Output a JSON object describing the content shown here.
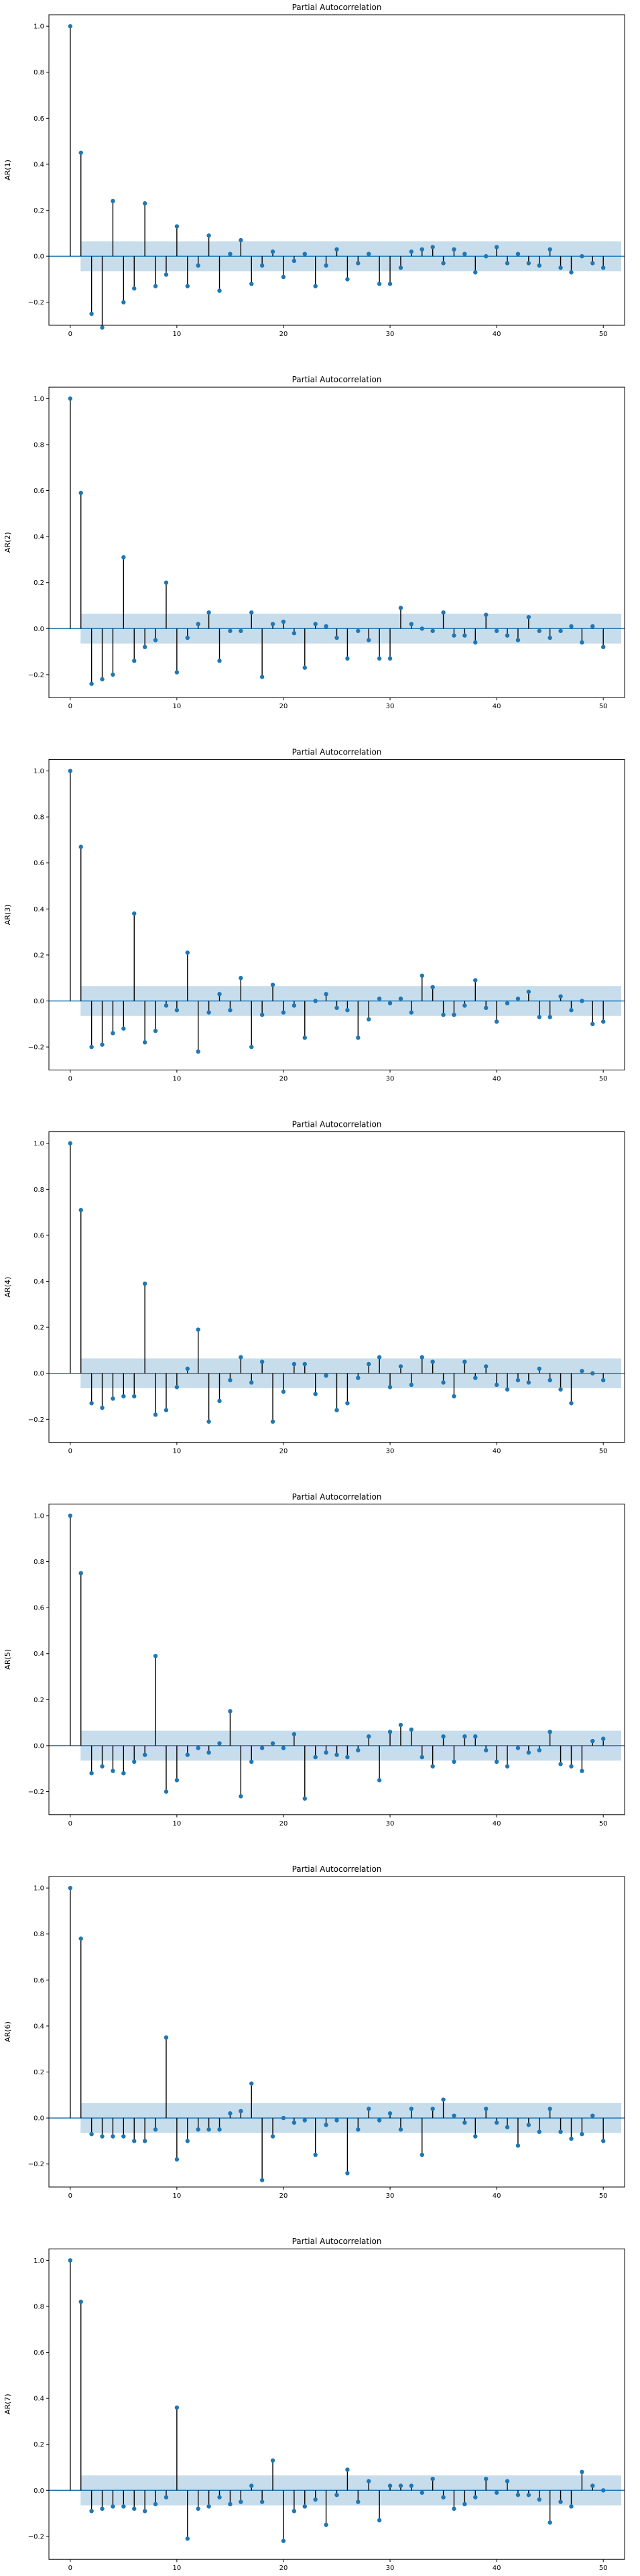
{
  "figure": {
    "colors": {
      "marker": "#1f77b4",
      "stem": "#000000",
      "band": "#1f77b4"
    }
  },
  "chart_data": [
    {
      "type": "stem",
      "title": "Partial Autocorrelation",
      "ylabel": "AR(1)",
      "xlim": [
        -2,
        52
      ],
      "ylim": [
        -0.3,
        1.05
      ],
      "xticks": [
        0,
        10,
        20,
        30,
        40,
        50
      ],
      "yticks": [
        -0.2,
        0.0,
        0.2,
        0.4,
        0.6,
        0.8,
        1.0
      ],
      "confidence_band": 0.065,
      "x": [
        0,
        1,
        2,
        3,
        4,
        5,
        6,
        7,
        8,
        9,
        10,
        11,
        12,
        13,
        14,
        15,
        16,
        17,
        18,
        19,
        20,
        21,
        22,
        23,
        24,
        25,
        26,
        27,
        28,
        29,
        30,
        31,
        32,
        33,
        34,
        35,
        36,
        37,
        38,
        39,
        40,
        41,
        42,
        43,
        44,
        45,
        46,
        47,
        48,
        49,
        50
      ],
      "values": [
        1.0,
        0.45,
        -0.25,
        -0.31,
        0.24,
        -0.2,
        -0.14,
        0.23,
        -0.13,
        -0.08,
        0.13,
        -0.13,
        -0.04,
        0.09,
        -0.15,
        0.01,
        0.07,
        -0.12,
        -0.04,
        0.02,
        -0.09,
        -0.02,
        0.01,
        -0.13,
        -0.04,
        0.03,
        -0.1,
        -0.03,
        0.01,
        -0.12,
        -0.12,
        -0.05,
        0.02,
        0.03,
        0.04,
        -0.03,
        0.03,
        0.01,
        -0.07,
        0.0,
        0.04,
        -0.03,
        0.01,
        -0.03,
        -0.04,
        0.03,
        -0.05,
        -0.07,
        0.0,
        -0.03,
        -0.05
      ]
    },
    {
      "type": "stem",
      "title": "Partial Autocorrelation",
      "ylabel": "AR(2)",
      "xlim": [
        -2,
        52
      ],
      "ylim": [
        -0.3,
        1.05
      ],
      "xticks": [
        0,
        10,
        20,
        30,
        40,
        50
      ],
      "yticks": [
        -0.2,
        0.0,
        0.2,
        0.4,
        0.6,
        0.8,
        1.0
      ],
      "confidence_band": 0.065,
      "x": [
        0,
        1,
        2,
        3,
        4,
        5,
        6,
        7,
        8,
        9,
        10,
        11,
        12,
        13,
        14,
        15,
        16,
        17,
        18,
        19,
        20,
        21,
        22,
        23,
        24,
        25,
        26,
        27,
        28,
        29,
        30,
        31,
        32,
        33,
        34,
        35,
        36,
        37,
        38,
        39,
        40,
        41,
        42,
        43,
        44,
        45,
        46,
        47,
        48,
        49,
        50
      ],
      "values": [
        1.0,
        0.59,
        -0.24,
        -0.22,
        -0.2,
        0.31,
        -0.14,
        -0.08,
        -0.05,
        0.2,
        -0.19,
        -0.04,
        0.02,
        0.07,
        -0.14,
        -0.01,
        -0.01,
        0.07,
        -0.21,
        0.02,
        0.03,
        -0.02,
        -0.17,
        0.02,
        0.01,
        -0.04,
        -0.13,
        -0.01,
        -0.05,
        -0.13,
        -0.13,
        0.09,
        0.02,
        0.0,
        -0.01,
        0.07,
        -0.03,
        -0.03,
        -0.06,
        0.06,
        -0.01,
        -0.03,
        -0.05,
        0.05,
        -0.01,
        -0.04,
        -0.01,
        0.01,
        -0.06,
        0.01,
        -0.08
      ]
    },
    {
      "type": "stem",
      "title": "Partial Autocorrelation",
      "ylabel": "AR(3)",
      "xlim": [
        -2,
        52
      ],
      "ylim": [
        -0.3,
        1.05
      ],
      "xticks": [
        0,
        10,
        20,
        30,
        40,
        50
      ],
      "yticks": [
        -0.2,
        0.0,
        0.2,
        0.4,
        0.6,
        0.8,
        1.0
      ],
      "confidence_band": 0.065,
      "x": [
        0,
        1,
        2,
        3,
        4,
        5,
        6,
        7,
        8,
        9,
        10,
        11,
        12,
        13,
        14,
        15,
        16,
        17,
        18,
        19,
        20,
        21,
        22,
        23,
        24,
        25,
        26,
        27,
        28,
        29,
        30,
        31,
        32,
        33,
        34,
        35,
        36,
        37,
        38,
        39,
        40,
        41,
        42,
        43,
        44,
        45,
        46,
        47,
        48,
        49,
        50
      ],
      "values": [
        1.0,
        0.67,
        -0.2,
        -0.19,
        -0.14,
        -0.12,
        0.38,
        -0.18,
        -0.13,
        -0.02,
        -0.04,
        0.21,
        -0.22,
        -0.05,
        0.03,
        -0.04,
        0.1,
        -0.2,
        -0.06,
        0.07,
        -0.05,
        -0.02,
        -0.16,
        0.0,
        0.03,
        -0.03,
        -0.04,
        -0.16,
        -0.08,
        0.01,
        -0.01,
        0.01,
        -0.05,
        0.11,
        0.06,
        -0.06,
        -0.06,
        -0.02,
        0.09,
        -0.03,
        -0.09,
        -0.01,
        0.01,
        0.04,
        -0.07,
        -0.07,
        0.02,
        -0.04,
        0.0,
        -0.1,
        -0.09
      ]
    },
    {
      "type": "stem",
      "title": "Partial Autocorrelation",
      "ylabel": "AR(4)",
      "xlim": [
        -2,
        52
      ],
      "ylim": [
        -0.3,
        1.05
      ],
      "xticks": [
        0,
        10,
        20,
        30,
        40,
        50
      ],
      "yticks": [
        -0.2,
        0.0,
        0.2,
        0.4,
        0.6,
        0.8,
        1.0
      ],
      "confidence_band": 0.065,
      "x": [
        0,
        1,
        2,
        3,
        4,
        5,
        6,
        7,
        8,
        9,
        10,
        11,
        12,
        13,
        14,
        15,
        16,
        17,
        18,
        19,
        20,
        21,
        22,
        23,
        24,
        25,
        26,
        27,
        28,
        29,
        30,
        31,
        32,
        33,
        34,
        35,
        36,
        37,
        38,
        39,
        40,
        41,
        42,
        43,
        44,
        45,
        46,
        47,
        48,
        49,
        50
      ],
      "values": [
        1.0,
        0.71,
        -0.13,
        -0.15,
        -0.11,
        -0.1,
        -0.1,
        0.39,
        -0.18,
        -0.16,
        -0.06,
        0.02,
        0.19,
        -0.21,
        -0.12,
        -0.03,
        0.07,
        -0.04,
        0.05,
        -0.21,
        -0.08,
        0.04,
        0.04,
        -0.09,
        -0.01,
        -0.16,
        -0.13,
        -0.02,
        0.04,
        0.07,
        -0.06,
        0.03,
        -0.05,
        0.07,
        0.05,
        -0.04,
        -0.1,
        0.05,
        -0.02,
        0.03,
        -0.05,
        -0.07,
        -0.03,
        -0.04,
        0.02,
        -0.03,
        -0.07,
        -0.13,
        0.01,
        0.0,
        -0.03
      ]
    },
    {
      "type": "stem",
      "title": "Partial Autocorrelation",
      "ylabel": "AR(5)",
      "xlim": [
        -2,
        52
      ],
      "ylim": [
        -0.3,
        1.05
      ],
      "xticks": [
        0,
        10,
        20,
        30,
        40,
        50
      ],
      "yticks": [
        -0.2,
        0.0,
        0.2,
        0.4,
        0.6,
        0.8,
        1.0
      ],
      "confidence_band": 0.065,
      "x": [
        0,
        1,
        2,
        3,
        4,
        5,
        6,
        7,
        8,
        9,
        10,
        11,
        12,
        13,
        14,
        15,
        16,
        17,
        18,
        19,
        20,
        21,
        22,
        23,
        24,
        25,
        26,
        27,
        28,
        29,
        30,
        31,
        32,
        33,
        34,
        35,
        36,
        37,
        38,
        39,
        40,
        41,
        42,
        43,
        44,
        45,
        46,
        47,
        48,
        49,
        50
      ],
      "values": [
        1.0,
        0.75,
        -0.12,
        -0.09,
        -0.11,
        -0.12,
        -0.07,
        -0.04,
        0.39,
        -0.2,
        -0.15,
        -0.04,
        -0.01,
        -0.03,
        0.01,
        0.15,
        -0.22,
        -0.07,
        -0.01,
        0.01,
        -0.01,
        0.05,
        -0.23,
        -0.05,
        -0.03,
        -0.04,
        -0.05,
        -0.02,
        0.04,
        -0.15,
        0.06,
        0.09,
        0.07,
        -0.05,
        -0.09,
        0.04,
        -0.07,
        0.04,
        0.04,
        -0.02,
        -0.07,
        -0.09,
        -0.01,
        -0.03,
        -0.02,
        0.06,
        -0.08,
        -0.09,
        -0.11,
        0.02,
        0.03
      ]
    },
    {
      "type": "stem",
      "title": "Partial Autocorrelation",
      "ylabel": "AR(6)",
      "xlim": [
        -2,
        52
      ],
      "ylim": [
        -0.3,
        1.05
      ],
      "xticks": [
        0,
        10,
        20,
        30,
        40,
        50
      ],
      "yticks": [
        -0.2,
        0.0,
        0.2,
        0.4,
        0.6,
        0.8,
        1.0
      ],
      "confidence_band": 0.065,
      "x": [
        0,
        1,
        2,
        3,
        4,
        5,
        6,
        7,
        8,
        9,
        10,
        11,
        12,
        13,
        14,
        15,
        16,
        17,
        18,
        19,
        20,
        21,
        22,
        23,
        24,
        25,
        26,
        27,
        28,
        29,
        30,
        31,
        32,
        33,
        34,
        35,
        36,
        37,
        38,
        39,
        40,
        41,
        42,
        43,
        44,
        45,
        46,
        47,
        48,
        49,
        50
      ],
      "values": [
        1.0,
        0.78,
        -0.07,
        -0.08,
        -0.08,
        -0.08,
        -0.1,
        -0.1,
        -0.05,
        0.35,
        -0.18,
        -0.1,
        -0.05,
        -0.05,
        -0.05,
        0.02,
        0.03,
        0.15,
        -0.27,
        -0.08,
        0.0,
        -0.02,
        -0.01,
        -0.16,
        -0.03,
        -0.01,
        -0.24,
        -0.05,
        0.04,
        -0.01,
        0.02,
        -0.05,
        0.04,
        -0.16,
        0.04,
        0.08,
        0.01,
        -0.02,
        -0.08,
        0.04,
        -0.02,
        -0.04,
        -0.12,
        -0.03,
        -0.06,
        0.04,
        -0.06,
        -0.09,
        -0.07,
        0.01,
        -0.1
      ]
    },
    {
      "type": "stem",
      "title": "Partial Autocorrelation",
      "ylabel": "AR(7)",
      "xlim": [
        -2,
        52
      ],
      "ylim": [
        -0.3,
        1.05
      ],
      "xticks": [
        0,
        10,
        20,
        30,
        40,
        50
      ],
      "yticks": [
        -0.2,
        0.0,
        0.2,
        0.4,
        0.6,
        0.8,
        1.0
      ],
      "confidence_band": 0.065,
      "x": [
        0,
        1,
        2,
        3,
        4,
        5,
        6,
        7,
        8,
        9,
        10,
        11,
        12,
        13,
        14,
        15,
        16,
        17,
        18,
        19,
        20,
        21,
        22,
        23,
        24,
        25,
        26,
        27,
        28,
        29,
        30,
        31,
        32,
        33,
        34,
        35,
        36,
        37,
        38,
        39,
        40,
        41,
        42,
        43,
        44,
        45,
        46,
        47,
        48,
        49,
        50
      ],
      "values": [
        1.0,
        0.82,
        -0.09,
        -0.08,
        -0.07,
        -0.07,
        -0.08,
        -0.09,
        -0.06,
        -0.03,
        0.36,
        -0.21,
        -0.08,
        -0.07,
        -0.03,
        -0.06,
        -0.05,
        0.02,
        -0.05,
        0.13,
        -0.22,
        -0.09,
        -0.07,
        -0.04,
        -0.15,
        -0.02,
        0.09,
        -0.05,
        0.04,
        -0.13,
        0.02,
        0.02,
        0.02,
        -0.01,
        0.05,
        -0.03,
        -0.08,
        -0.06,
        -0.03,
        0.05,
        -0.01,
        0.04,
        -0.02,
        -0.02,
        -0.04,
        -0.14,
        -0.05,
        -0.07,
        0.08,
        0.02,
        0.0
      ]
    }
  ]
}
